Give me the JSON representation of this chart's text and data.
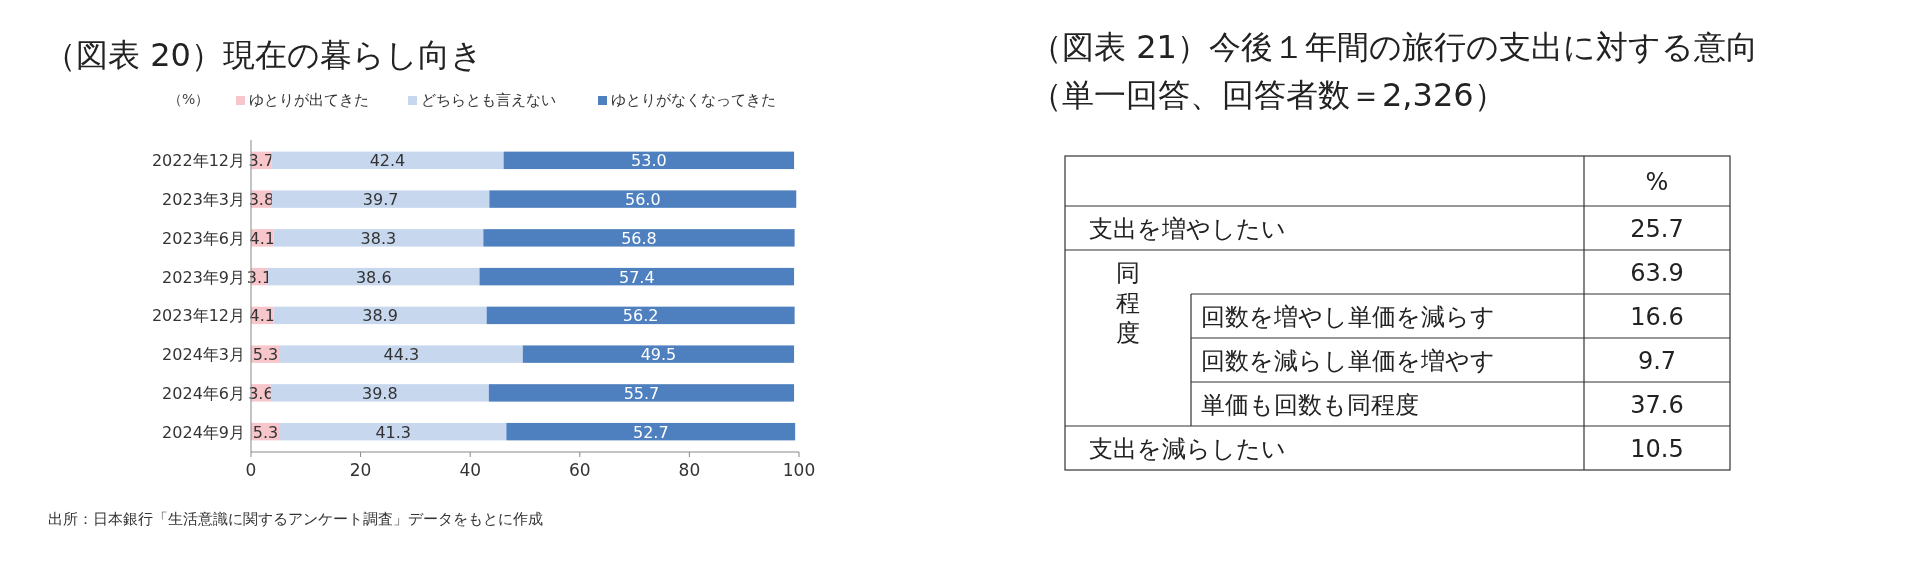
{
  "chart_data": [
    {
      "type": "bar",
      "orientation": "horizontal",
      "stacked": true,
      "title": "（図表 20）現在の暮らし向き",
      "xlabel": "（%）",
      "categories": [
        "2022年12月",
        "2023年3月",
        "2023年6月",
        "2023年9月",
        "2023年12月",
        "2024年3月",
        "2024年6月",
        "2024年9月"
      ],
      "series": [
        {
          "name": "ゆとりが出てきた",
          "color": "#f6c6cb",
          "values": [
            3.7,
            3.8,
            4.1,
            3.1,
            4.1,
            5.3,
            3.6,
            5.3
          ],
          "value_labels": [
            "3.7",
            "3.8",
            "4.1",
            "3.1",
            "4.1",
            "5.3",
            "3.6",
            "5.3"
          ]
        },
        {
          "name": "どちらとも言えない",
          "color": "#c7d7ee",
          "values": [
            42.4,
            39.7,
            38.3,
            38.6,
            38.9,
            44.3,
            39.8,
            41.3
          ],
          "value_labels": [
            "42.4",
            "39.7",
            "38.3",
            "38.6",
            "38.9",
            "44.3",
            "39.8",
            "41.3"
          ]
        },
        {
          "name": "ゆとりがなくなってきた",
          "color": "#4e7fbf",
          "values": [
            53.0,
            56.0,
            56.8,
            57.4,
            56.2,
            49.5,
            55.7,
            52.7
          ],
          "value_labels": [
            "53.0",
            "56.0",
            "56.8",
            "57.4",
            "56.2",
            "49.5",
            "55.7",
            "52.7"
          ]
        }
      ],
      "xlim": [
        0,
        100
      ],
      "xticks": [
        0,
        20,
        40,
        60,
        80,
        100
      ],
      "grid": false,
      "legend": "top",
      "annotations": [
        "出所：日本銀行「生活意識に関するアンケート調査」データをもとに作成"
      ]
    },
    {
      "type": "other",
      "title": "（図表 21）今後１年間の旅行の支出に対する意向",
      "subtitle": "（単一回答、回答者数＝2,326）",
      "ylabel": "%",
      "categories": [
        "支出を増やしたい",
        "同程度",
        "回数を増やし単価を減らす",
        "回数を減らし単価を増やす",
        "単価も回数も同程度",
        "支出を減らしたい"
      ],
      "values": [
        25.7,
        63.9,
        16.6,
        9.7,
        37.6,
        10.5
      ],
      "data_labels": true
    }
  ]
}
